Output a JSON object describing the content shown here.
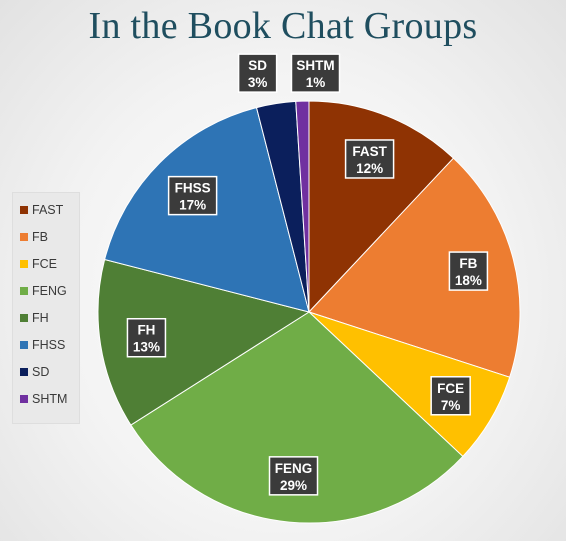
{
  "title": "In the Book Chat Groups",
  "chart_data": {
    "type": "pie",
    "title": "In the Book Chat Groups",
    "legend_position": "left",
    "slices": [
      {
        "label": "FAST",
        "value": 12,
        "display": "12%",
        "color": "#8f3303"
      },
      {
        "label": "FB",
        "value": 18,
        "display": "18%",
        "color": "#ed7d31"
      },
      {
        "label": "FCE",
        "value": 7,
        "display": "7%",
        "color": "#ffc000"
      },
      {
        "label": "FENG",
        "value": 29,
        "display": "29%",
        "color": "#70ad47"
      },
      {
        "label": "FH",
        "value": 13,
        "display": "13%",
        "color": "#4f7f35"
      },
      {
        "label": "FHSS",
        "value": 17,
        "display": "17%",
        "color": "#2e74b5"
      },
      {
        "label": "SD",
        "value": 3,
        "display": "3%",
        "color": "#0b1f5c"
      },
      {
        "label": "SHTM",
        "value": 1,
        "display": "1%",
        "color": "#7030a0"
      }
    ]
  }
}
